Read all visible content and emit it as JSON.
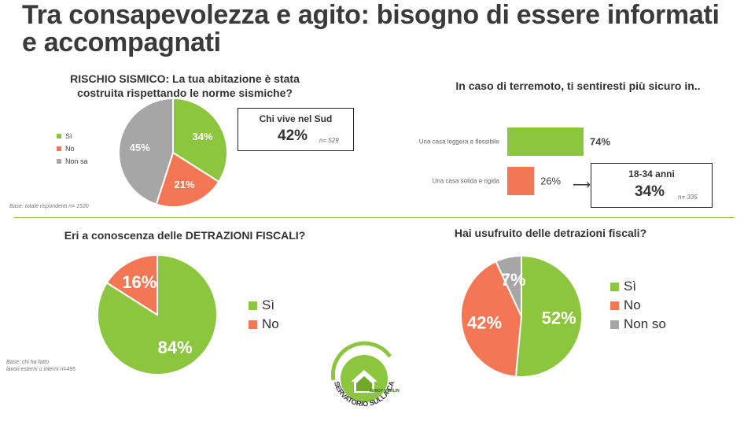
{
  "page": {
    "title": "Tra consapevolezza e agito: bisogno di essere informati e accompagnati"
  },
  "colors": {
    "green": "#8cc63f",
    "orange": "#f37754",
    "gray": "#a6a6a6",
    "text": "#333333"
  },
  "q1": {
    "title_line1": "RISCHIO SISMICO: La tua abitazione è stata",
    "title_line2": "costruita rispettando le norme sismiche?",
    "base": "Base: totale rispondenti n= 1520",
    "callout": {
      "label": "Chi vive nel Sud",
      "value": "42%",
      "n": "n= 529"
    }
  },
  "q2": {
    "title": "In caso di terremoto, ti sentiresti più sicuro in..",
    "callout": {
      "label": "18-34 anni",
      "value": "34%",
      "n": "n= 335"
    }
  },
  "q3": {
    "title": "Eri a conoscenza delle DETRAZIONI FISCALI?",
    "base_line1": "Base: chi ha fatto",
    "base_line2": "lavori esterni o interni n=495"
  },
  "q4": {
    "title": "Hai usufruito delle detrazioni fiscali?"
  },
  "logo": {
    "brand": "LEROY MERLIN",
    "text": "OSSERVATORIO SULLA CASA"
  },
  "chart_data": [
    {
      "type": "pie",
      "categories": [
        "Sì",
        "No",
        "Non sa"
      ],
      "values": [
        34,
        21,
        45
      ],
      "labels": [
        "34%",
        "21%",
        "45%"
      ]
    },
    {
      "type": "bar",
      "orientation": "horizontal",
      "categories": [
        "Una casa leggera e flessibile",
        "Una casa solida e rigida"
      ],
      "values": [
        74,
        26
      ],
      "labels": [
        "74%",
        "26%"
      ]
    },
    {
      "type": "pie",
      "categories": [
        "Sì",
        "No"
      ],
      "values": [
        84,
        16
      ],
      "labels": [
        "84%",
        "16%"
      ]
    },
    {
      "type": "pie",
      "categories": [
        "Sì",
        "No",
        "Non so"
      ],
      "values": [
        52,
        42,
        7
      ],
      "labels": [
        "52%",
        "42%",
        "7%"
      ]
    }
  ]
}
